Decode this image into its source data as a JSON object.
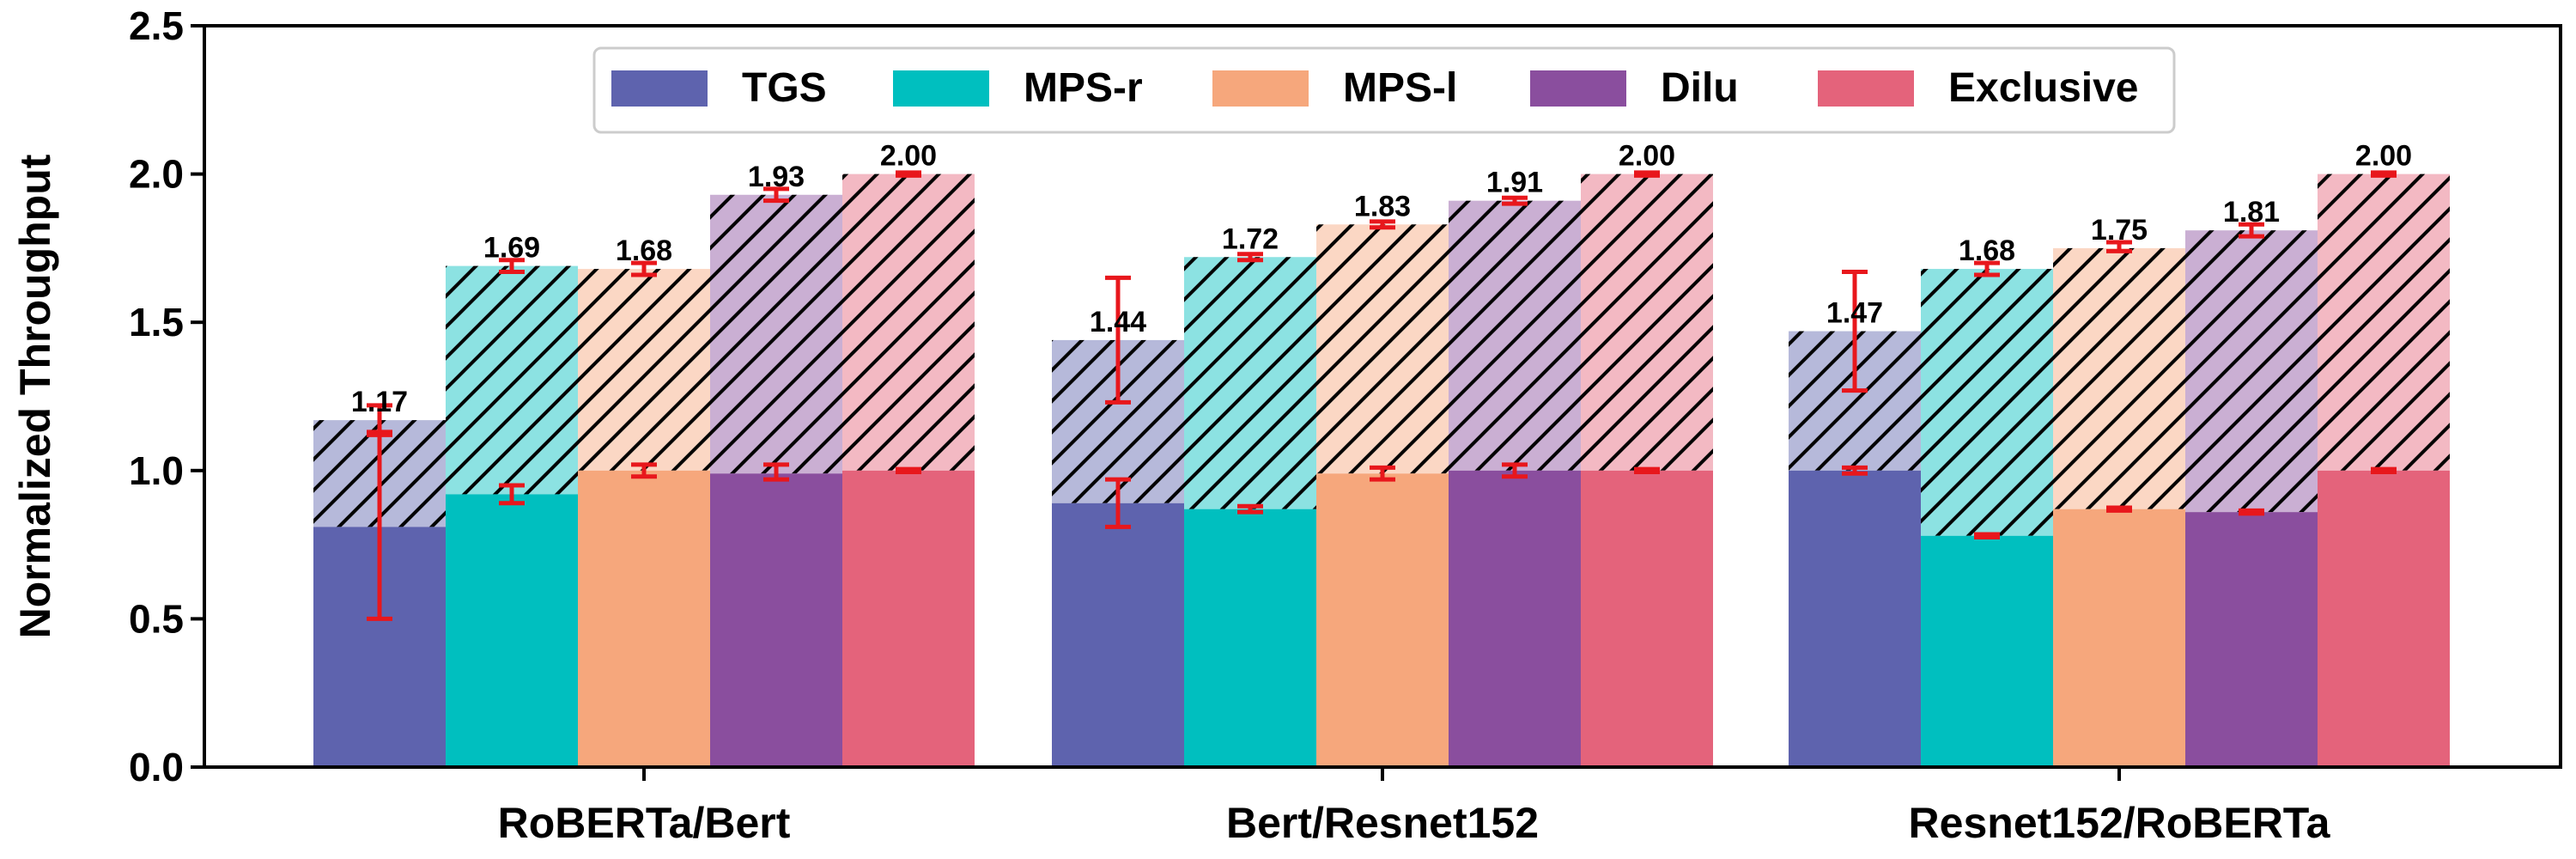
{
  "chart_data": {
    "type": "bar",
    "stacked": true,
    "ylabel": "Normalized Throughput",
    "xlabel": "",
    "ylim": [
      0,
      2.5
    ],
    "yticks": [
      "0.0",
      "0.5",
      "1.0",
      "1.5",
      "2.0",
      "2.5"
    ],
    "grid": false,
    "legend_position": "top-center",
    "categories": [
      "RoBERTa/Bert",
      "Bert/Resnet152",
      "Resnet152/RoBERTa"
    ],
    "series": [
      {
        "name": "TGS",
        "color": "#5e63ae",
        "lower": [
          0.81,
          0.89,
          1.0
        ],
        "lower_err": [
          [
            0.5,
            1.13
          ],
          [
            0.81,
            0.97
          ],
          [
            0.99,
            1.01
          ]
        ],
        "total": [
          1.17,
          1.44,
          1.47
        ],
        "total_label": [
          "1.17",
          "1.44",
          "1.47"
        ],
        "total_err": [
          [
            1.12,
            1.22
          ],
          [
            1.23,
            1.65
          ],
          [
            1.27,
            1.67
          ]
        ]
      },
      {
        "name": "MPS-r",
        "color": "#00bfbf",
        "lower": [
          0.92,
          0.87,
          0.78
        ],
        "lower_err": [
          [
            0.89,
            0.95
          ],
          [
            0.86,
            0.88
          ],
          [
            0.775,
            0.785
          ]
        ],
        "total": [
          1.69,
          1.72,
          1.68
        ],
        "total_label": [
          "1.69",
          "1.72",
          "1.68"
        ],
        "total_err": [
          [
            1.67,
            1.71
          ],
          [
            1.71,
            1.73
          ],
          [
            1.66,
            1.7
          ]
        ]
      },
      {
        "name": "MPS-l",
        "color": "#f6a77c",
        "lower": [
          1.0,
          0.99,
          0.87
        ],
        "lower_err": [
          [
            0.98,
            1.02
          ],
          [
            0.97,
            1.01
          ],
          [
            0.865,
            0.875
          ]
        ],
        "total": [
          1.68,
          1.83,
          1.75
        ],
        "total_label": [
          "1.68",
          "1.83",
          "1.75"
        ],
        "total_err": [
          [
            1.66,
            1.7
          ],
          [
            1.82,
            1.84
          ],
          [
            1.74,
            1.77
          ]
        ]
      },
      {
        "name": "Dilu",
        "color": "#8a4e9e",
        "lower": [
          0.99,
          1.0,
          0.86
        ],
        "lower_err": [
          [
            0.97,
            1.02
          ],
          [
            0.98,
            1.02
          ],
          [
            0.855,
            0.865
          ]
        ],
        "total": [
          1.93,
          1.91,
          1.81
        ],
        "total_label": [
          "1.93",
          "1.91",
          "1.81"
        ],
        "total_err": [
          [
            1.91,
            1.95
          ],
          [
            1.9,
            1.92
          ],
          [
            1.79,
            1.83
          ]
        ]
      },
      {
        "name": "Exclusive",
        "color": "#e4637b",
        "lower": [
          1.0,
          1.0,
          1.0
        ],
        "lower_err": [
          [
            0.995,
            1.005
          ],
          [
            0.995,
            1.005
          ],
          [
            0.995,
            1.005
          ]
        ],
        "total": [
          2.0,
          2.0,
          2.0
        ],
        "total_label": [
          "2.00",
          "2.00",
          "2.00"
        ],
        "total_err": [
          [
            1.995,
            2.005
          ],
          [
            1.995,
            2.005
          ],
          [
            1.995,
            2.005
          ]
        ]
      }
    ],
    "errorbar_color": "#e8171c",
    "hatch": "diagonal",
    "upper_segment_alpha": 0.45
  }
}
